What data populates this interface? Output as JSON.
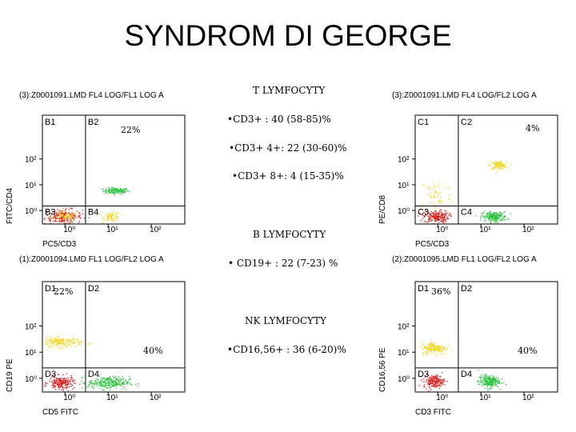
{
  "slide": {
    "title": "SYNDROM DI GEORGE",
    "t_section": {
      "heading": "T LYMFOCYTY",
      "lines": [
        "•CD3+ : 40 (58-85)%",
        "•CD3+ 4+: 22 (30-60)%",
        "•CD3+ 8+: 4 (15-35)%"
      ]
    },
    "b_section": {
      "heading": "B LYMFOCYTY",
      "lines": [
        "• CD19+ : 22 (7-23) %"
      ]
    },
    "nk_section": {
      "heading": "NK LYMFOCYTY",
      "lines": [
        "•CD16,56+ : 36 (6-20)%"
      ]
    }
  },
  "colors": {
    "red": "#dd1a1a",
    "green": "#27c23a",
    "yellow": "#f4d41a",
    "line": "#000000"
  },
  "chart_data": [
    {
      "type": "scatter",
      "title": "(3):Z0001091.LMD FL4 LOG/FL1 LOG A",
      "xlabel": "PC5/CD3",
      "ylabel": "FITC/CD4",
      "xscale": "log",
      "yscale": "log",
      "xlim": [
        0.3,
        600
      ],
      "ylim": [
        0.3,
        5000
      ],
      "x_ticks": [
        "10⁰",
        "10¹",
        "10²"
      ],
      "y_ticks": [
        "10⁰",
        "10¹",
        "10²"
      ],
      "quadrants": [
        "B1",
        "B2",
        "B3",
        "B4"
      ],
      "gate": {
        "x": 3,
        "y": 1.5
      },
      "annotations": [
        {
          "text": "22%",
          "quadrant": "B2"
        }
      ],
      "clusters": [
        {
          "color": "green",
          "x": 15,
          "y": 6,
          "sx": 0.12,
          "sy": 0.05,
          "n": 130
        },
        {
          "color": "red",
          "x": 0.9,
          "y": 0.6,
          "sx": 0.18,
          "sy": 0.12,
          "n": 220
        },
        {
          "color": "yellow",
          "x": 1.0,
          "y": 0.6,
          "sx": 0.12,
          "sy": 0.08,
          "n": 70
        },
        {
          "color": "yellow",
          "x": 12,
          "y": 0.6,
          "sx": 0.08,
          "sy": 0.08,
          "n": 70
        }
      ]
    },
    {
      "type": "scatter",
      "title": "(3):Z0001091.LMD FL4 LOG/FL2 LOG A",
      "xlabel": "PC5/CD3",
      "ylabel": "PE/CD8",
      "xscale": "log",
      "yscale": "log",
      "xlim": [
        0.3,
        600
      ],
      "ylim": [
        0.3,
        5000
      ],
      "x_ticks": [
        "10⁰",
        "10¹",
        "10²"
      ],
      "y_ticks": [
        "10⁰",
        "10¹",
        "10²"
      ],
      "quadrants": [
        "C1",
        "C2",
        "C3",
        "C4"
      ],
      "gate": {
        "x": 3,
        "y": 1.5
      },
      "annotations": [
        {
          "text": "4%",
          "quadrant": "C2"
        }
      ],
      "clusters": [
        {
          "color": "yellow",
          "x": 25,
          "y": 60,
          "sx": 0.08,
          "sy": 0.06,
          "n": 110
        },
        {
          "color": "yellow",
          "x": 0.9,
          "y": 4,
          "sx": 0.15,
          "sy": 0.3,
          "n": 60
        },
        {
          "color": "red",
          "x": 0.9,
          "y": 0.6,
          "sx": 0.12,
          "sy": 0.1,
          "n": 200
        },
        {
          "color": "green",
          "x": 20,
          "y": 0.6,
          "sx": 0.12,
          "sy": 0.08,
          "n": 200
        }
      ]
    },
    {
      "type": "scatter",
      "title": "(1):Z0001094.LMD FL1 LOG/FL2 LOG A",
      "xlabel": "CD5 FITC",
      "ylabel": "CD19 PE",
      "xscale": "log",
      "yscale": "log",
      "xlim": [
        0.3,
        600
      ],
      "ylim": [
        0.3,
        5000
      ],
      "x_ticks": [
        "10⁰",
        "10¹",
        "10²"
      ],
      "y_ticks": [
        "10⁰",
        "10¹",
        "10²"
      ],
      "quadrants": [
        "D1",
        "D2",
        "D3",
        "D4"
      ],
      "gate": {
        "x": 3,
        "y": 2.5
      },
      "annotations": [
        {
          "text": "22%",
          "quadrant": "D1"
        },
        {
          "text": "40%",
          "quadrant": "D4"
        }
      ],
      "clusters": [
        {
          "color": "yellow",
          "x": 0.8,
          "y": 25,
          "sx": 0.2,
          "sy": 0.08,
          "n": 180
        },
        {
          "color": "red",
          "x": 0.8,
          "y": 0.7,
          "sx": 0.12,
          "sy": 0.1,
          "n": 200
        },
        {
          "color": "green",
          "x": 10,
          "y": 0.7,
          "sx": 0.2,
          "sy": 0.1,
          "n": 260
        }
      ]
    },
    {
      "type": "scatter",
      "title": "(2):Z0001095.LMD FL1 LOG/FL2 LOG A",
      "xlabel": "CD3 FITC",
      "ylabel": "CD16,56 PE",
      "xscale": "log",
      "yscale": "log",
      "xlim": [
        0.3,
        600
      ],
      "ylim": [
        0.3,
        5000
      ],
      "x_ticks": [
        "10⁰",
        "10¹",
        "10²"
      ],
      "y_ticks": [
        "10⁰",
        "10¹",
        "10²"
      ],
      "quadrants": [
        "D1",
        "D2",
        "D3",
        "D4"
      ],
      "gate": {
        "x": 3,
        "y": 2.5
      },
      "annotations": [
        {
          "text": "36%",
          "quadrant": "D1"
        },
        {
          "text": "40%",
          "quadrant": "D4"
        }
      ],
      "clusters": [
        {
          "color": "yellow",
          "x": 0.8,
          "y": 15,
          "sx": 0.12,
          "sy": 0.1,
          "n": 180
        },
        {
          "color": "red",
          "x": 0.8,
          "y": 0.8,
          "sx": 0.1,
          "sy": 0.1,
          "n": 180
        },
        {
          "color": "green",
          "x": 15,
          "y": 0.8,
          "sx": 0.1,
          "sy": 0.1,
          "n": 220
        }
      ]
    }
  ]
}
